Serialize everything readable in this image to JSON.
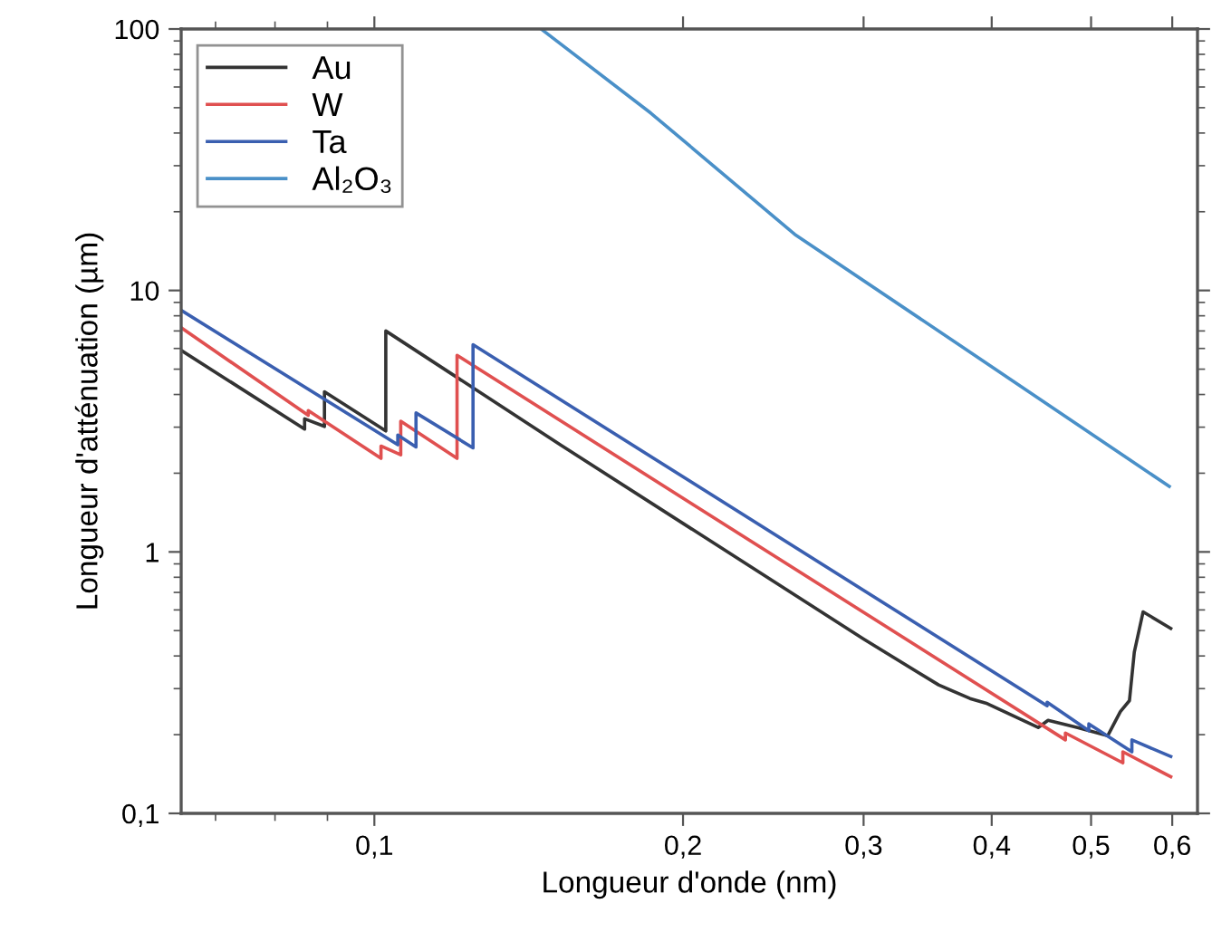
{
  "chart_data": {
    "type": "line",
    "xlabel": "Longueur d'onde (nm)",
    "ylabel": "Longueur d'atténuation (µm)",
    "log": "xy",
    "grid": false,
    "legend": "top left",
    "line_style": "solid",
    "marker": "none",
    "xlim": [
      0.0648,
      0.635
    ],
    "ylim": [
      0.1,
      100
    ],
    "xticks": [
      {
        "value": 0.1,
        "label": "0,1"
      },
      {
        "value": 0.2,
        "label": "0,2"
      },
      {
        "value": 0.3,
        "label": "0,3"
      },
      {
        "value": 0.4,
        "label": "0,4"
      },
      {
        "value": 0.5,
        "label": "0,5"
      },
      {
        "value": 0.6,
        "label": "0,6"
      }
    ],
    "yticks": [
      {
        "value": 0.1,
        "label": "0,1"
      },
      1,
      10,
      100
    ],
    "series": [
      {
        "name": "Au",
        "color": "#333333",
        "x": [
          0.0648,
          0.0855,
          0.0855,
          0.0894,
          0.0894,
          0.1026,
          0.1026,
          0.1518,
          0.3,
          0.355,
          0.381,
          0.396,
          0.444,
          0.454,
          0.485,
          0.519,
          0.534,
          0.545,
          0.551,
          0.562,
          0.598
        ],
        "values": [
          5.9,
          2.95,
          3.23,
          3.02,
          4.1,
          2.9,
          7.0,
          2.57,
          0.464,
          0.31,
          0.275,
          0.263,
          0.213,
          0.227,
          0.213,
          0.198,
          0.245,
          0.27,
          0.414,
          0.59,
          0.51
        ]
      },
      {
        "name": "W",
        "color": "#e05050",
        "x": [
          0.0648,
          0.0862,
          0.0862,
          0.1015,
          0.1015,
          0.1061,
          0.1061,
          0.1204,
          0.1204,
          0.472,
          0.472,
          0.537,
          0.537,
          0.598
        ],
        "values": [
          7.2,
          3.33,
          3.47,
          2.28,
          2.54,
          2.35,
          3.16,
          2.28,
          5.65,
          0.191,
          0.203,
          0.156,
          0.172,
          0.138
        ]
      },
      {
        "name": "Ta",
        "color": "#3a5fb0",
        "x": [
          0.0648,
          0.1054,
          0.1054,
          0.1098,
          0.1098,
          0.1248,
          0.1248,
          0.453,
          0.453,
          0.4975,
          0.4975,
          0.548,
          0.548,
          0.598
        ],
        "values": [
          8.4,
          2.57,
          2.8,
          2.52,
          3.4,
          2.5,
          6.2,
          0.258,
          0.266,
          0.207,
          0.22,
          0.172,
          0.191,
          0.165
        ]
      },
      {
        "name": "Al₂O₃",
        "color": "#4a90c8",
        "x": [
          0.1454,
          0.186,
          0.257,
          0.385,
          0.596
        ],
        "values": [
          100,
          47.7,
          16.4,
          5.65,
          1.78
        ]
      }
    ]
  }
}
